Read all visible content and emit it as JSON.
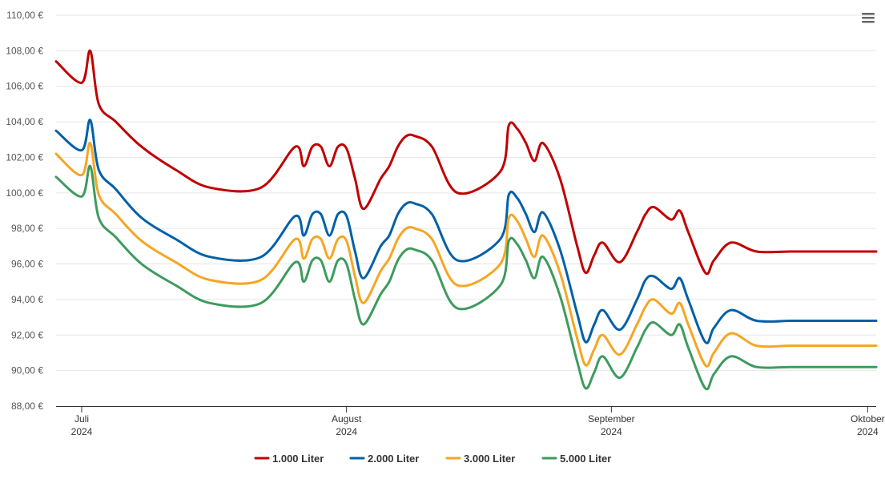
{
  "chart_data": {
    "type": "line",
    "title": "",
    "xlabel": "",
    "ylabel": "",
    "ylim": [
      88,
      110
    ],
    "yticks": [
      "88,00 €",
      "90,00 €",
      "92,00 €",
      "94,00 €",
      "96,00 €",
      "98,00 €",
      "100,00 €",
      "102,00 €",
      "104,00 €",
      "106,00 €",
      "108,00 €",
      "110,00 €"
    ],
    "x_range": [
      "2024-06-28",
      "2024-10-02"
    ],
    "xticks": [
      {
        "date": "2024-07-01",
        "month": "Juli",
        "year": "2024"
      },
      {
        "date": "2024-08-01",
        "month": "August",
        "year": "2024"
      },
      {
        "date": "2024-09-01",
        "month": "September",
        "year": "2024"
      },
      {
        "date": "2024-10-01",
        "month": "Oktober",
        "year": "2024"
      }
    ],
    "grid": true,
    "legend_position": "bottom-center",
    "x": [
      "2024-06-28",
      "2024-07-01",
      "2024-07-02",
      "2024-07-03",
      "2024-07-05",
      "2024-07-08",
      "2024-07-12",
      "2024-07-16",
      "2024-07-22",
      "2024-07-26",
      "2024-07-27",
      "2024-07-28",
      "2024-07-29",
      "2024-07-30",
      "2024-07-31",
      "2024-08-01",
      "2024-08-02",
      "2024-08-03",
      "2024-08-05",
      "2024-08-06",
      "2024-08-07",
      "2024-08-08",
      "2024-08-09",
      "2024-08-11",
      "2024-08-14",
      "2024-08-19",
      "2024-08-20",
      "2024-08-21",
      "2024-08-22",
      "2024-08-23",
      "2024-08-24",
      "2024-08-26",
      "2024-08-28",
      "2024-08-29",
      "2024-08-30",
      "2024-08-31",
      "2024-09-02",
      "2024-09-04",
      "2024-09-05",
      "2024-09-06",
      "2024-09-08",
      "2024-09-09",
      "2024-09-10",
      "2024-09-12",
      "2024-09-13",
      "2024-09-15",
      "2024-09-18",
      "2024-09-22",
      "2024-09-25",
      "2024-09-26",
      "2024-09-27",
      "2024-09-28",
      "2024-09-29",
      "2024-09-30",
      "2024-10-01",
      "2024-10-02"
    ],
    "series": [
      {
        "name": "1.000 Liter",
        "color": "#c00000",
        "values": [
          107.4,
          106.2,
          108.0,
          105.0,
          104.0,
          102.6,
          101.3,
          100.3,
          100.3,
          102.6,
          101.5,
          102.6,
          102.6,
          101.5,
          102.6,
          102.5,
          100.8,
          99.1,
          100.8,
          101.5,
          102.6,
          103.2,
          103.2,
          102.6,
          100.0,
          101.2,
          103.8,
          103.6,
          102.8,
          101.8,
          102.8,
          100.8,
          97.0,
          95.5,
          96.5,
          97.2,
          96.1,
          97.8,
          98.8,
          99.2,
          98.5,
          99.0,
          97.8,
          95.5,
          96.2,
          97.2,
          96.7,
          96.7,
          96.7,
          96.7,
          96.7,
          96.7,
          96.7,
          96.7,
          96.7,
          96.7
        ]
      },
      {
        "name": "2.000 Liter",
        "color": "#0060a8",
        "values": [
          103.5,
          102.4,
          104.1,
          101.3,
          100.2,
          98.6,
          97.4,
          96.4,
          96.4,
          98.7,
          97.6,
          98.8,
          98.8,
          97.6,
          98.8,
          98.7,
          96.7,
          95.2,
          97.0,
          97.6,
          98.8,
          99.4,
          99.4,
          98.8,
          96.2,
          97.4,
          99.9,
          99.7,
          98.8,
          97.8,
          98.9,
          96.8,
          93.2,
          91.6,
          92.6,
          93.4,
          92.3,
          94.0,
          95.1,
          95.3,
          94.6,
          95.2,
          94.0,
          91.6,
          92.4,
          93.4,
          92.8,
          92.8,
          92.8,
          92.8,
          92.8,
          92.8,
          92.8,
          92.8,
          92.8,
          92.8
        ]
      },
      {
        "name": "3.000 Liter",
        "color": "#f5a623",
        "values": [
          102.2,
          101.0,
          102.8,
          99.9,
          98.8,
          97.3,
          96.1,
          95.1,
          95.1,
          97.4,
          96.3,
          97.4,
          97.4,
          96.3,
          97.4,
          97.3,
          95.3,
          93.8,
          95.6,
          96.3,
          97.4,
          98.0,
          98.0,
          97.4,
          94.8,
          96.0,
          98.6,
          98.4,
          97.4,
          96.4,
          97.6,
          95.5,
          91.8,
          90.3,
          91.2,
          92.0,
          90.9,
          92.6,
          93.6,
          94.0,
          93.2,
          93.8,
          92.6,
          90.3,
          91.0,
          92.1,
          91.4,
          91.4,
          91.4,
          91.4,
          91.4,
          91.4,
          91.4,
          91.4,
          91.4,
          91.4
        ]
      },
      {
        "name": "5.000 Liter",
        "color": "#3d9b5e",
        "values": [
          100.9,
          99.8,
          101.5,
          98.6,
          97.5,
          96.0,
          94.8,
          93.8,
          93.8,
          96.1,
          95.0,
          96.2,
          96.2,
          95.0,
          96.2,
          96.0,
          94.0,
          92.6,
          94.3,
          95.0,
          96.2,
          96.8,
          96.8,
          96.2,
          93.5,
          94.8,
          97.3,
          97.1,
          96.2,
          95.2,
          96.4,
          94.2,
          90.5,
          89.0,
          89.9,
          90.8,
          89.6,
          91.3,
          92.3,
          92.7,
          92.0,
          92.6,
          91.3,
          89.0,
          89.8,
          90.8,
          90.2,
          90.2,
          90.2,
          90.2,
          90.2,
          90.2,
          90.2,
          90.2,
          90.2,
          90.2
        ]
      }
    ]
  },
  "ui": {
    "menu_icon": "hamburger-menu-icon"
  }
}
